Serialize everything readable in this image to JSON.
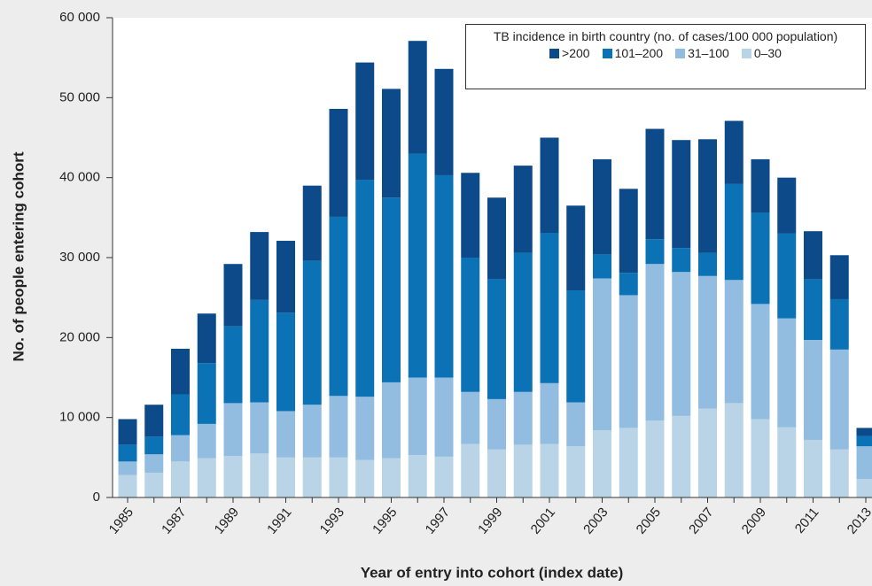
{
  "chart_data": {
    "type": "stacked-bar",
    "y_axis_label": "No. of people entering cohort",
    "x_axis_label": "Year of entry into cohort (index date)",
    "legend_title": "TB incidence in birth country (no. of cases/100 000 population)",
    "categories": [
      "1985",
      null,
      "1987",
      null,
      "1989",
      null,
      "1991",
      null,
      "1993",
      null,
      "1995",
      null,
      "1997",
      null,
      "1999",
      null,
      "2001",
      null,
      "2003",
      null,
      "2005",
      null,
      "2007",
      null,
      "2009",
      null,
      "2011",
      null,
      "2013"
    ],
    "series": [
      {
        "name": "0–30",
        "color": "#b8d4e6",
        "values": [
          2800,
          3100,
          4500,
          4900,
          5200,
          5500,
          5000,
          5000,
          5000,
          4700,
          4900,
          5300,
          5100,
          6700,
          6000,
          6600,
          6700,
          6400,
          8400,
          8700,
          9600,
          10200,
          11100,
          11800,
          9800,
          8800,
          7200,
          6000,
          2300
        ]
      },
      {
        "name": "31–100",
        "color": "#93bde0",
        "values": [
          1700,
          2300,
          3300,
          4300,
          6600,
          6400,
          5800,
          6600,
          7700,
          7900,
          9500,
          9700,
          9900,
          6500,
          6300,
          6600,
          7600,
          5500,
          19000,
          16600,
          19600,
          18000,
          16600,
          15400,
          14400,
          13600,
          12500,
          12500,
          4100
        ]
      },
      {
        "name": "101–200",
        "color": "#0a72b5",
        "values": [
          2100,
          2200,
          5100,
          7600,
          9600,
          12800,
          12300,
          18000,
          22400,
          27100,
          23100,
          28000,
          25300,
          16800,
          15000,
          17400,
          18800,
          14000,
          3000,
          2800,
          3100,
          3000,
          2900,
          12000,
          11400,
          10600,
          7600,
          6300,
          1300
        ]
      },
      {
        "name": ">200",
        "color": "#0c4a8a",
        "values": [
          3200,
          4000,
          5700,
          6200,
          7800,
          8500,
          9000,
          9400,
          13500,
          14700,
          13600,
          14100,
          13300,
          10600,
          10200,
          10900,
          11900,
          10600,
          11900,
          10500,
          13800,
          13500,
          14200,
          7900,
          6700,
          7000,
          6000,
          5500,
          1000
        ]
      }
    ],
    "ylim": [
      0,
      60000
    ],
    "yticks": [
      0,
      {
        "value": 10000,
        "label": "10 000"
      },
      {
        "value": 20000,
        "label": "20 000"
      },
      {
        "value": 30000,
        "label": "30 000"
      },
      {
        "value": 40000,
        "label": "40 000"
      },
      {
        "value": 50000,
        "label": "50 000"
      },
      {
        "value": 60000,
        "label": "60 000"
      }
    ]
  }
}
